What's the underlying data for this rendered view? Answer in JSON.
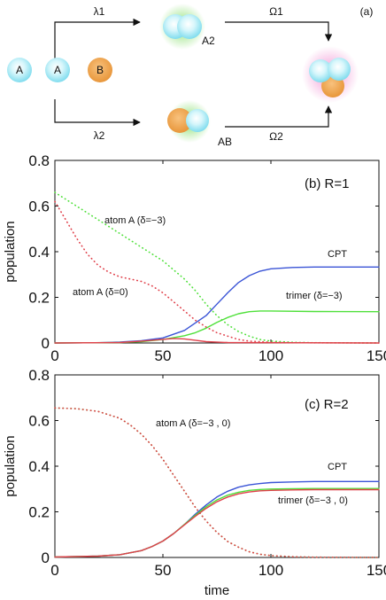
{
  "schematic": {
    "panel_label": "(a)",
    "arrow_labels": [
      "λ1",
      "λ2",
      "Ω1",
      "Ω2"
    ],
    "atom_labels": [
      "A",
      "A",
      "B"
    ],
    "product_labels": [
      "A2",
      "AB"
    ],
    "colors": {
      "atom_a": "#8fe4f2",
      "atom_b": "#f0a24a",
      "glow_green": "#7ddc60",
      "glow_pink": "#f08ad0"
    }
  },
  "chart_data": [
    {
      "type": "line",
      "panel_label": "(b) R=1",
      "ylabel": "population",
      "xlim": [
        0,
        150
      ],
      "ylim": [
        0,
        0.8
      ],
      "xticks": [
        0,
        50,
        100,
        150
      ],
      "yticks": [
        0,
        0.2,
        0.4,
        0.6,
        0.8
      ],
      "annotations": [
        "atom A (δ=−3)",
        "atom A (δ=0)",
        "CPT",
        "trimer (δ=−3)"
      ],
      "series": [
        {
          "name": "CPT",
          "color": "#3a54d6",
          "style": "solid",
          "x": [
            0,
            20,
            30,
            40,
            50,
            60,
            70,
            75,
            80,
            85,
            90,
            95,
            100,
            110,
            120,
            130,
            150
          ],
          "y": [
            0,
            0.001,
            0.004,
            0.01,
            0.022,
            0.055,
            0.12,
            0.17,
            0.22,
            0.265,
            0.295,
            0.315,
            0.325,
            0.331,
            0.333,
            0.333,
            0.333
          ]
        },
        {
          "name": "trimer (δ=−3)",
          "color": "#4fe03a",
          "style": "solid",
          "x": [
            0,
            30,
            40,
            50,
            60,
            65,
            70,
            75,
            80,
            85,
            90,
            95,
            100,
            120,
            150
          ],
          "y": [
            0,
            0.002,
            0.006,
            0.015,
            0.032,
            0.045,
            0.065,
            0.09,
            0.112,
            0.128,
            0.137,
            0.14,
            0.14,
            0.138,
            0.137
          ]
        },
        {
          "name": "atom A (δ=−3)",
          "color": "#4fe03a",
          "style": "dotted",
          "x": [
            0,
            10,
            20,
            30,
            40,
            50,
            60,
            65,
            70,
            75,
            80,
            85,
            90,
            95,
            100,
            110,
            120,
            150
          ],
          "y": [
            0.66,
            0.6,
            0.54,
            0.48,
            0.42,
            0.36,
            0.28,
            0.23,
            0.17,
            0.12,
            0.08,
            0.05,
            0.03,
            0.015,
            0.008,
            0.003,
            0.001,
            0
          ]
        },
        {
          "name": "atom A (δ=0)",
          "color": "#e0404a",
          "style": "dotted",
          "x": [
            0,
            5,
            10,
            15,
            20,
            25,
            30,
            35,
            40,
            45,
            50,
            55,
            60,
            65,
            70,
            75,
            80,
            85,
            90,
            100,
            110,
            150
          ],
          "y": [
            0.62,
            0.54,
            0.46,
            0.39,
            0.34,
            0.31,
            0.29,
            0.28,
            0.27,
            0.25,
            0.22,
            0.18,
            0.14,
            0.1,
            0.07,
            0.045,
            0.03,
            0.015,
            0.008,
            0.003,
            0.001,
            0
          ]
        },
        {
          "name": "trimer (δ=0)",
          "color": "#e0404a",
          "style": "solid",
          "x": [
            0,
            30,
            40,
            50,
            55,
            60,
            65,
            70,
            80,
            100,
            150
          ],
          "y": [
            0,
            0.002,
            0.008,
            0.016,
            0.02,
            0.018,
            0.012,
            0.006,
            0.002,
            0.001,
            0
          ]
        }
      ]
    },
    {
      "type": "line",
      "panel_label": "(c) R=2",
      "ylabel": "population",
      "xlabel": "time",
      "xlim": [
        0,
        150
      ],
      "ylim": [
        0,
        0.8
      ],
      "xticks": [
        0,
        50,
        100,
        150
      ],
      "yticks": [
        0,
        0.2,
        0.4,
        0.6,
        0.8
      ],
      "annotations": [
        "atom A (δ=−3 , 0)",
        "CPT",
        "trimer (δ=−3 , 0)"
      ],
      "series": [
        {
          "name": "CPT",
          "color": "#3a54d6",
          "style": "solid",
          "x": [
            0,
            20,
            30,
            40,
            45,
            50,
            55,
            60,
            65,
            70,
            75,
            80,
            85,
            90,
            95,
            100,
            110,
            120,
            150
          ],
          "y": [
            0.002,
            0.006,
            0.012,
            0.03,
            0.048,
            0.072,
            0.105,
            0.145,
            0.19,
            0.23,
            0.265,
            0.29,
            0.308,
            0.318,
            0.324,
            0.328,
            0.331,
            0.333,
            0.333
          ]
        },
        {
          "name": "trimer (δ=−3)",
          "color": "#4fe03a",
          "style": "solid",
          "x": [
            0,
            20,
            30,
            40,
            45,
            50,
            55,
            60,
            65,
            70,
            75,
            80,
            85,
            90,
            95,
            100,
            110,
            120,
            150
          ],
          "y": [
            0.002,
            0.006,
            0.012,
            0.03,
            0.048,
            0.072,
            0.105,
            0.145,
            0.185,
            0.222,
            0.252,
            0.273,
            0.286,
            0.294,
            0.298,
            0.3,
            0.301,
            0.302,
            0.302
          ]
        },
        {
          "name": "trimer (δ=0)",
          "color": "#e0404a",
          "style": "solid",
          "x": [
            0,
            20,
            30,
            40,
            45,
            50,
            55,
            60,
            65,
            70,
            75,
            80,
            85,
            90,
            95,
            100,
            110,
            120,
            150
          ],
          "y": [
            0.002,
            0.006,
            0.012,
            0.03,
            0.048,
            0.072,
            0.105,
            0.143,
            0.18,
            0.215,
            0.244,
            0.265,
            0.279,
            0.287,
            0.292,
            0.294,
            0.296,
            0.297,
            0.297
          ]
        },
        {
          "name": "atom A (δ=−3)",
          "color": "#4fe03a",
          "style": "dotted",
          "x": [
            0,
            10,
            20,
            30,
            35,
            40,
            45,
            50,
            55,
            60,
            65,
            70,
            75,
            80,
            85,
            90,
            95,
            100,
            110,
            120,
            150
          ],
          "y": [
            0.655,
            0.652,
            0.64,
            0.61,
            0.58,
            0.54,
            0.49,
            0.43,
            0.36,
            0.29,
            0.22,
            0.16,
            0.11,
            0.07,
            0.045,
            0.025,
            0.014,
            0.008,
            0.003,
            0.001,
            0
          ]
        },
        {
          "name": "atom A (δ=0)",
          "color": "#e0404a",
          "style": "dotted",
          "x": [
            0,
            10,
            20,
            30,
            35,
            40,
            45,
            50,
            55,
            60,
            65,
            70,
            75,
            80,
            85,
            90,
            95,
            100,
            110,
            120,
            150
          ],
          "y": [
            0.655,
            0.652,
            0.64,
            0.61,
            0.58,
            0.54,
            0.49,
            0.43,
            0.36,
            0.29,
            0.22,
            0.16,
            0.11,
            0.07,
            0.045,
            0.025,
            0.014,
            0.008,
            0.003,
            0.001,
            0
          ]
        }
      ]
    }
  ]
}
